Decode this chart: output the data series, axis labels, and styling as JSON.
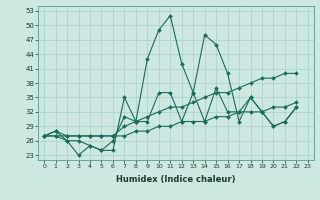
{
  "xlabel": "Humidex (Indice chaleur)",
  "bg_color": "#cce8e0",
  "line_color": "#1a6b5a",
  "grid_color": "#aacfc8",
  "xlim": [
    -0.5,
    23.5
  ],
  "ylim": [
    22,
    54
  ],
  "yticks": [
    23,
    26,
    29,
    32,
    35,
    38,
    41,
    44,
    47,
    50,
    53
  ],
  "xticks": [
    0,
    1,
    2,
    3,
    4,
    5,
    6,
    7,
    8,
    9,
    10,
    11,
    12,
    13,
    14,
    15,
    16,
    17,
    18,
    19,
    20,
    21,
    22,
    23
  ],
  "series": [
    {
      "x": [
        0,
        1,
        2,
        3,
        4,
        5,
        6,
        7,
        8,
        9,
        10,
        11,
        12,
        13,
        14,
        15,
        16,
        17,
        18,
        19,
        20,
        21,
        22,
        23
      ],
      "y": [
        27,
        28,
        26,
        23,
        25,
        24,
        24,
        35,
        30,
        43,
        49,
        52,
        42,
        36,
        48,
        46,
        40,
        30,
        35,
        32,
        29,
        30,
        33,
        null
      ]
    },
    {
      "x": [
        0,
        1,
        2,
        3,
        4,
        5,
        6,
        7,
        8,
        9,
        10,
        11,
        12,
        13,
        14,
        15,
        16,
        17,
        18,
        19,
        20,
        21,
        22,
        23
      ],
      "y": [
        27,
        27,
        26,
        26,
        25,
        24,
        26,
        31,
        30,
        30,
        36,
        36,
        30,
        36,
        30,
        37,
        32,
        32,
        35,
        32,
        29,
        30,
        33,
        null
      ]
    },
    {
      "x": [
        0,
        1,
        2,
        3,
        4,
        5,
        6,
        7,
        8,
        9,
        10,
        11,
        12,
        13,
        14,
        15,
        16,
        17,
        18,
        19,
        20,
        21,
        22,
        23
      ],
      "y": [
        27,
        28,
        27,
        27,
        27,
        27,
        27,
        29,
        30,
        31,
        32,
        33,
        33,
        34,
        35,
        36,
        36,
        37,
        38,
        39,
        39,
        40,
        40,
        null
      ]
    },
    {
      "x": [
        0,
        1,
        2,
        3,
        4,
        5,
        6,
        7,
        8,
        9,
        10,
        11,
        12,
        13,
        14,
        15,
        16,
        17,
        18,
        19,
        20,
        21,
        22,
        23
      ],
      "y": [
        27,
        27,
        27,
        27,
        27,
        27,
        27,
        27,
        28,
        28,
        29,
        29,
        30,
        30,
        30,
        31,
        31,
        32,
        32,
        32,
        33,
        33,
        34,
        null
      ]
    }
  ]
}
